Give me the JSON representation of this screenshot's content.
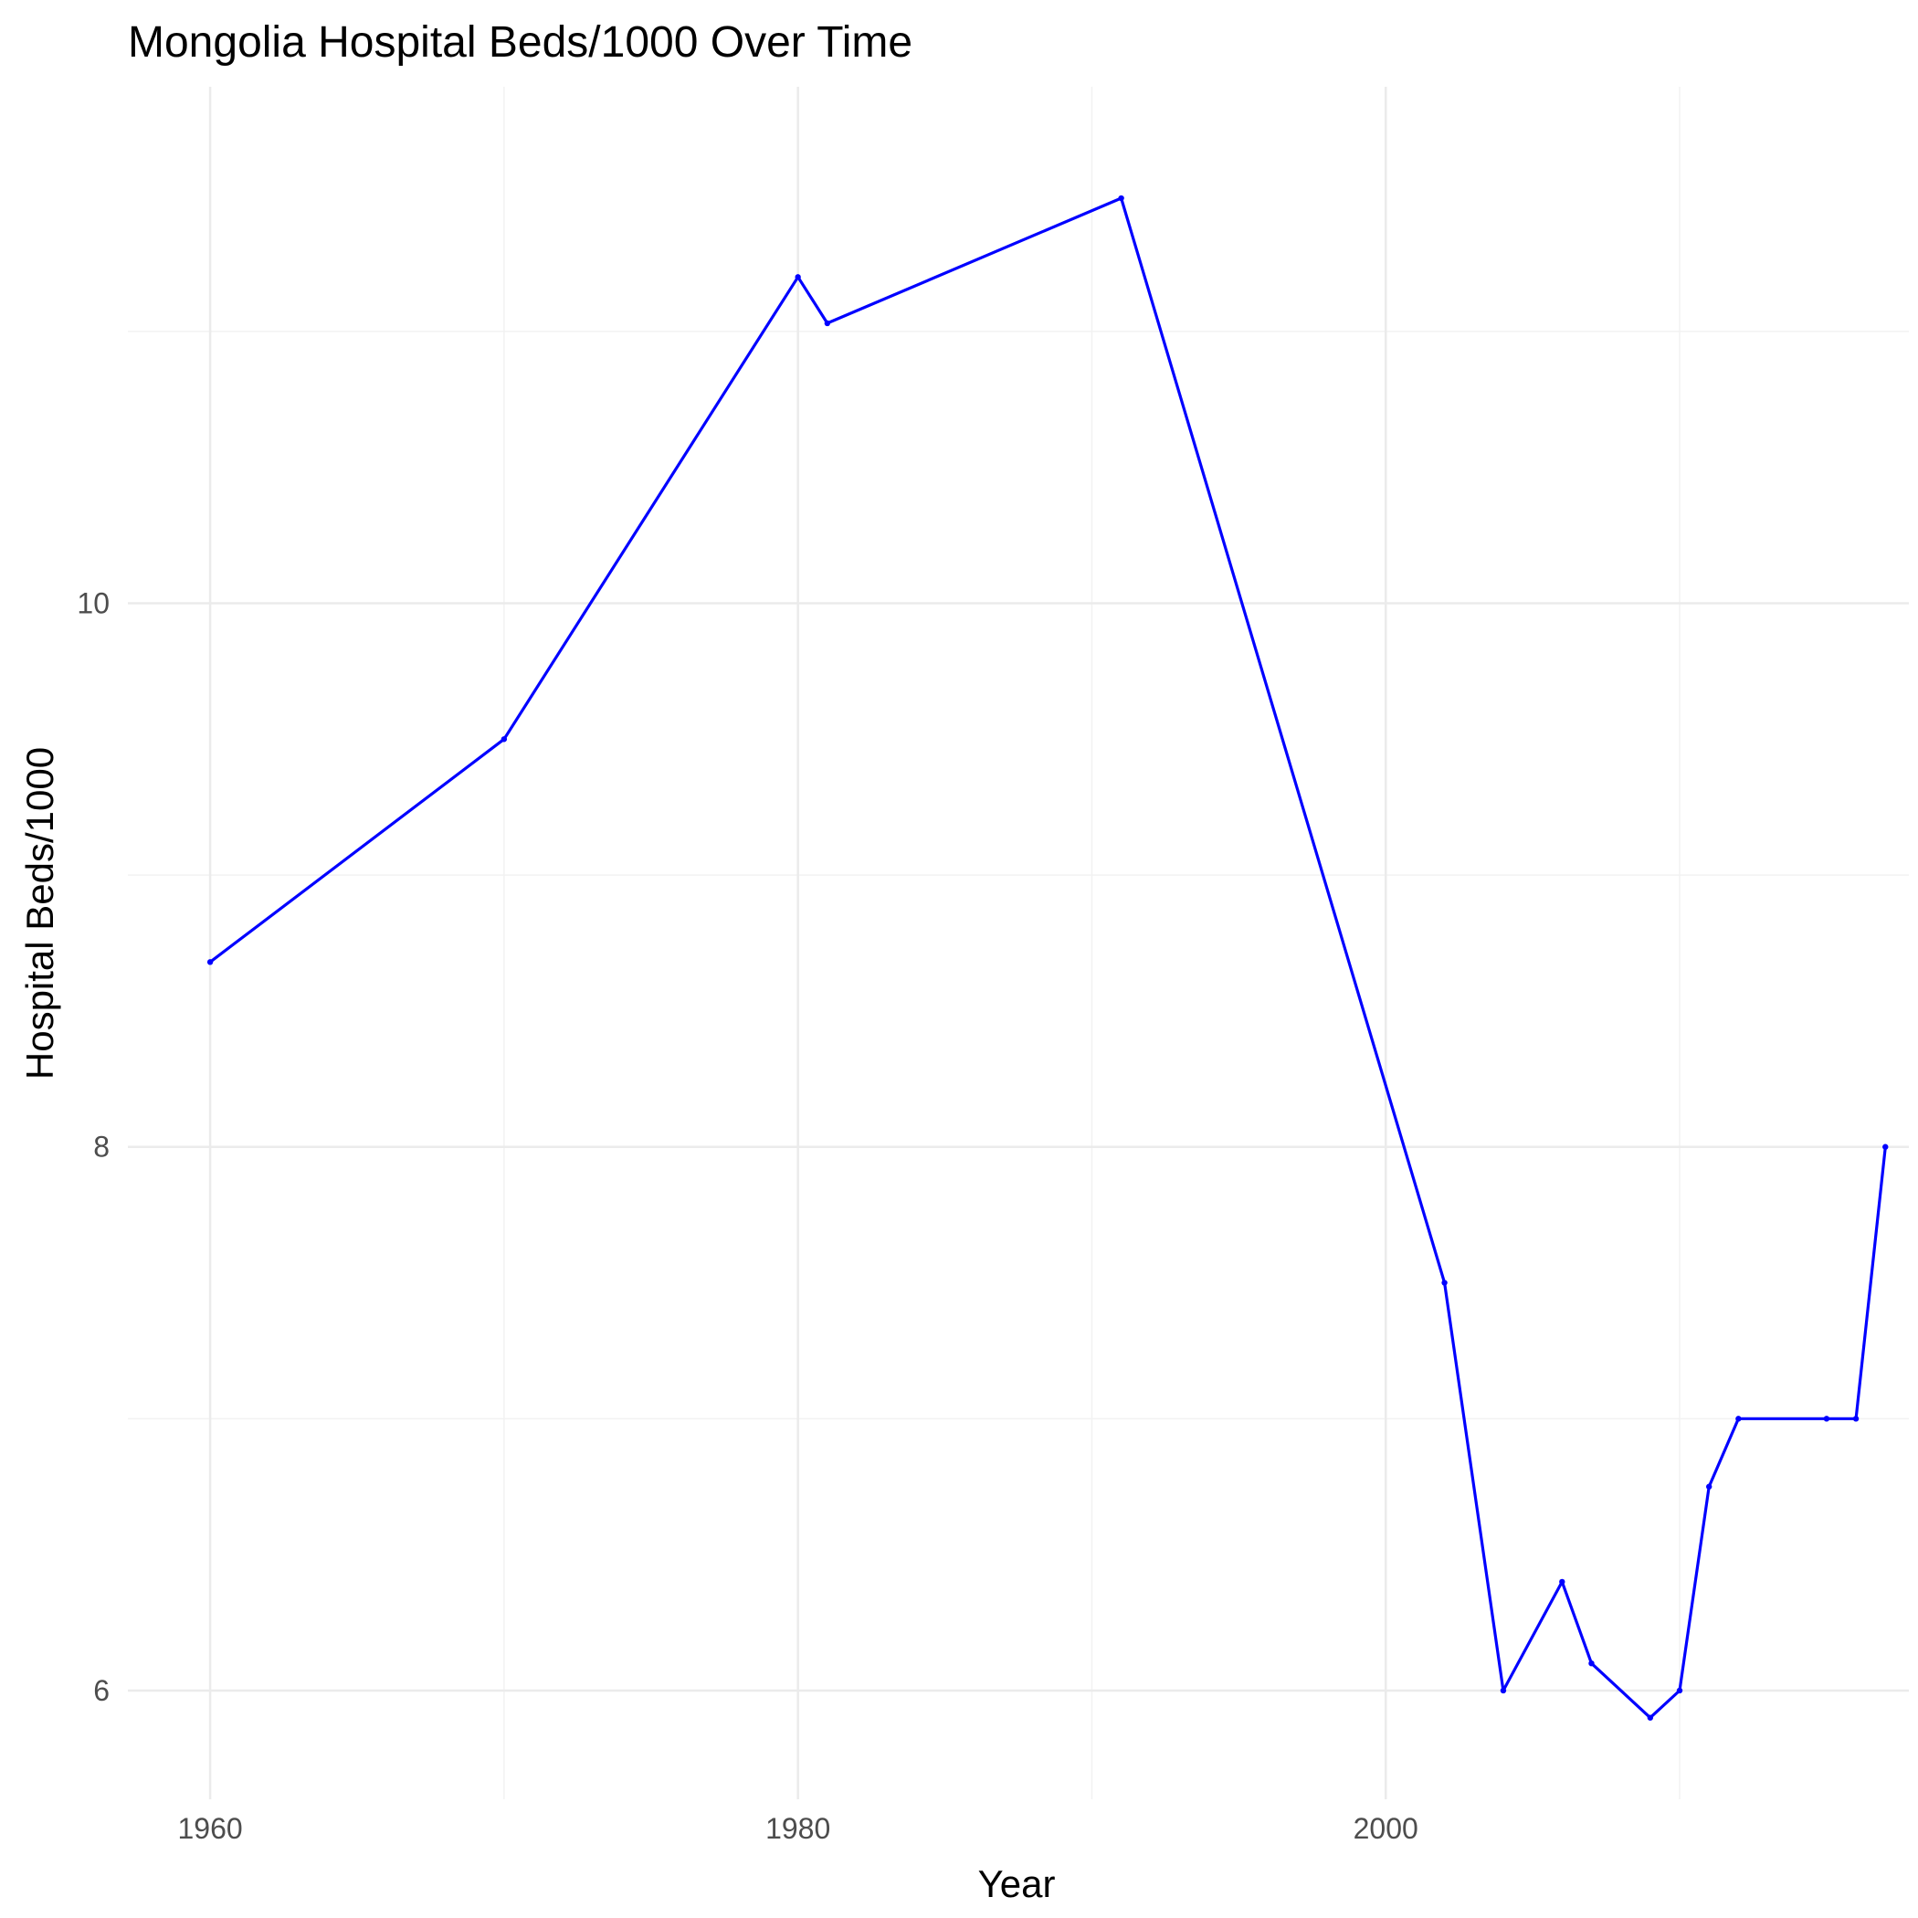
{
  "chart_data": {
    "type": "line",
    "title": "Mongolia Hospital Beds/1000 Over Time",
    "xlabel": "Year",
    "ylabel": "Hospital Beds/1000",
    "xlim": [
      1957.2,
      2017.8
    ],
    "ylim": [
      5.6,
      11.9
    ],
    "x_ticks": [
      1960,
      1980,
      2000
    ],
    "x_minor": [
      1970,
      1990,
      2010
    ],
    "y_ticks": [
      6,
      8,
      10
    ],
    "y_minor": [
      7,
      9,
      11
    ],
    "grid": true,
    "legend": "none",
    "line_color": "#0000ff",
    "series": [
      {
        "x": [
          1960,
          1970,
          1980,
          1981,
          1991,
          2002,
          2004,
          2006,
          2007,
          2009,
          2010,
          2011,
          2012,
          2015,
          2016,
          2017
        ],
        "values": [
          8.68,
          9.5,
          11.2,
          11.03,
          11.49,
          7.5,
          6.0,
          6.4,
          6.1,
          5.9,
          6.0,
          6.75,
          7.0,
          7.0,
          7.0,
          8.0
        ]
      }
    ]
  }
}
